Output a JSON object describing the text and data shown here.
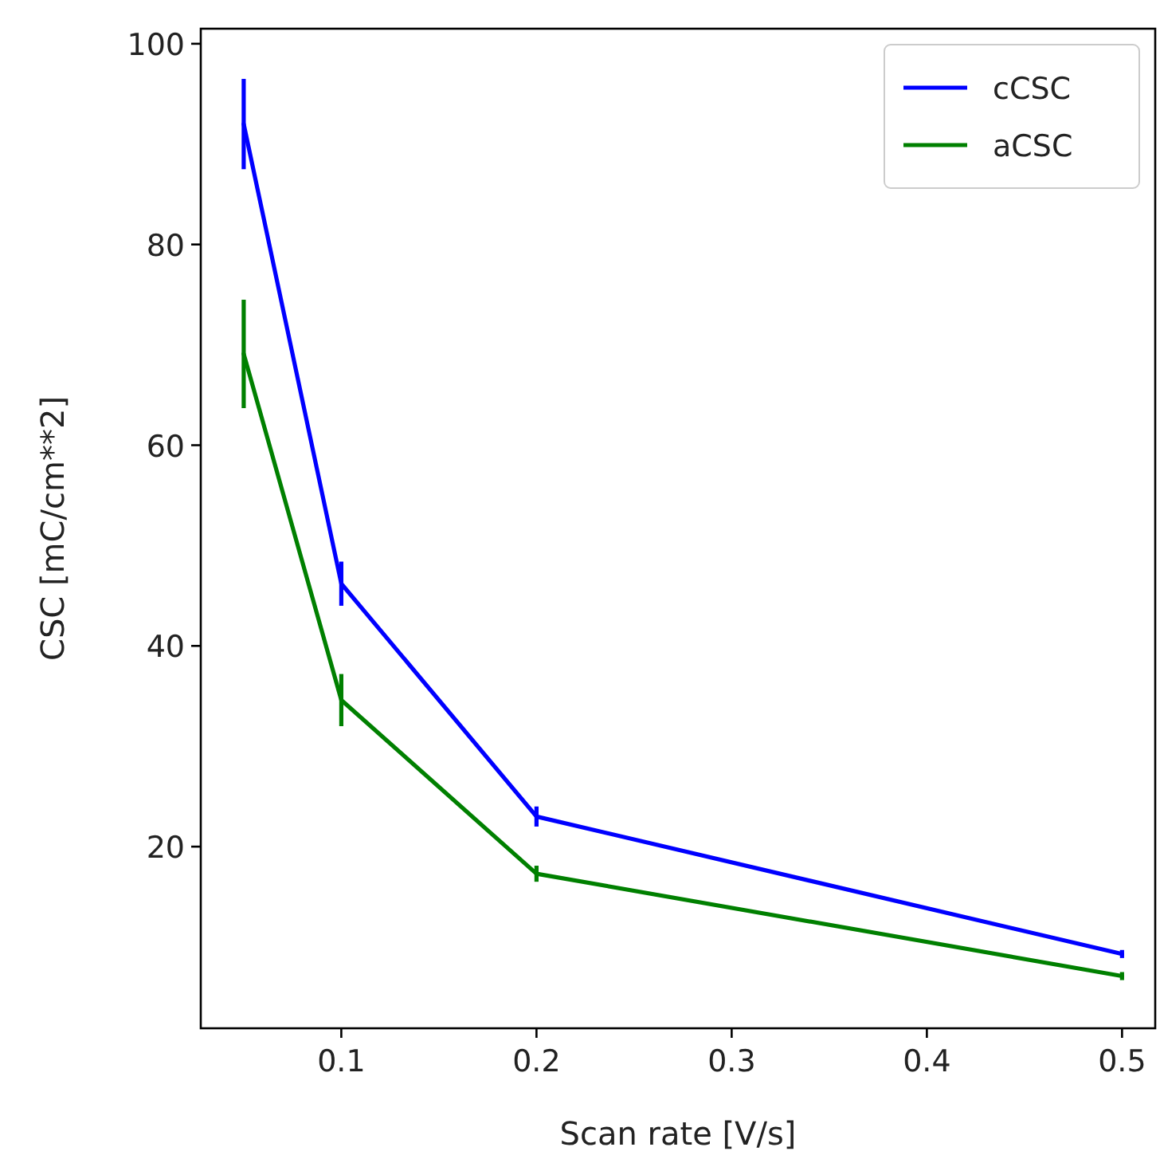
{
  "chart_data": {
    "type": "line",
    "xlabel": "Scan rate [V/s]",
    "ylabel": "CSC [mC/cm**2]",
    "x": [
      0.05,
      0.1,
      0.2,
      0.5
    ],
    "series": [
      {
        "name": "cCSC",
        "color": "#0000ff",
        "values": [
          92,
          46.2,
          23,
          9.3
        ],
        "errors": [
          4.5,
          2.2,
          1,
          0.4
        ]
      },
      {
        "name": "aCSC",
        "color": "#008000",
        "values": [
          69.1,
          34.6,
          17.3,
          7.1
        ],
        "errors": [
          5.4,
          2.6,
          0.8,
          0.4
        ]
      }
    ],
    "xlim": [
      0.028,
      0.517
    ],
    "ylim": [
      1.9,
      101.5
    ],
    "xticks": [
      0.1,
      0.2,
      0.3,
      0.4,
      0.5
    ],
    "yticks": [
      20,
      40,
      60,
      80,
      100
    ],
    "legend": "top right",
    "grid": false,
    "marker": "none",
    "line_style": "solid"
  }
}
